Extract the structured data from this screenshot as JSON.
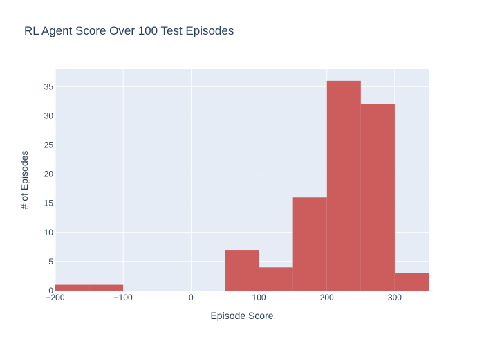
{
  "chart_data": {
    "type": "bar",
    "title": "RL Agent Score Over 100 Test Episodes",
    "xlabel": "Episode Score",
    "ylabel": "# of Episodes",
    "xlim": [
      -200,
      350
    ],
    "ylim": [
      0,
      38
    ],
    "bin_width": 50,
    "bins": [
      {
        "start": -200,
        "end": -150,
        "count": 1
      },
      {
        "start": -150,
        "end": -100,
        "count": 1
      },
      {
        "start": -100,
        "end": -50,
        "count": 0
      },
      {
        "start": -50,
        "end": 0,
        "count": 0
      },
      {
        "start": 0,
        "end": 50,
        "count": 0
      },
      {
        "start": 50,
        "end": 100,
        "count": 7
      },
      {
        "start": 100,
        "end": 150,
        "count": 4
      },
      {
        "start": 150,
        "end": 200,
        "count": 16
      },
      {
        "start": 200,
        "end": 250,
        "count": 36
      },
      {
        "start": 250,
        "end": 300,
        "count": 32
      },
      {
        "start": 300,
        "end": 350,
        "count": 3
      }
    ],
    "x_ticks": [
      {
        "value": -200,
        "label": "−200"
      },
      {
        "value": -100,
        "label": "−100"
      },
      {
        "value": 0,
        "label": "0"
      },
      {
        "value": 100,
        "label": "100"
      },
      {
        "value": 200,
        "label": "200"
      },
      {
        "value": 300,
        "label": "300"
      }
    ],
    "y_ticks": [
      {
        "value": 0,
        "label": "0"
      },
      {
        "value": 5,
        "label": "5"
      },
      {
        "value": 10,
        "label": "10"
      },
      {
        "value": 15,
        "label": "15"
      },
      {
        "value": 20,
        "label": "20"
      },
      {
        "value": 25,
        "label": "25"
      },
      {
        "value": 30,
        "label": "30"
      },
      {
        "value": 35,
        "label": "35"
      }
    ],
    "grid": true,
    "colors": {
      "bar": "#cd5c5c",
      "plot_background": "#e5ecf6",
      "grid": "#ffffff",
      "text": "#2a3f5f"
    }
  }
}
